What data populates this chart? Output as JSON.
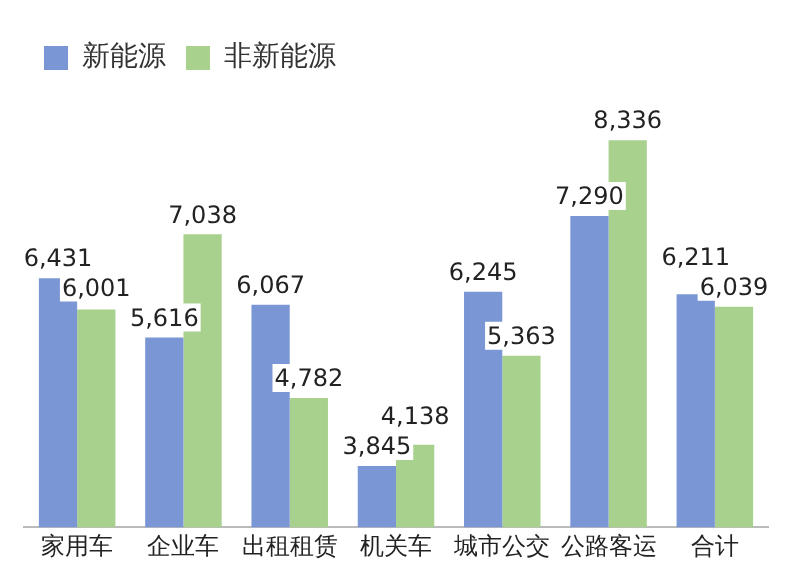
{
  "chart_data": {
    "type": "bar",
    "categories": [
      "家用车",
      "企业车",
      "出租租赁",
      "机关车",
      "城市公交",
      "公路客运",
      "合计"
    ],
    "series": [
      {
        "name": "新能源",
        "color": "#7b96d4",
        "values": [
          6431,
          5616,
          6067,
          3845,
          6245,
          7290,
          6211
        ],
        "value_labels": [
          "6,431",
          "5,616",
          "6,067",
          "3,845",
          "6,245",
          "7,290",
          "6,211"
        ]
      },
      {
        "name": "非新能源",
        "color": "#a9d18e",
        "values": [
          6001,
          7038,
          4782,
          4138,
          5363,
          8336,
          6039
        ],
        "value_labels": [
          "6,001",
          "7,038",
          "4,782",
          "4,138",
          "5,363",
          "8,336",
          "6,039"
        ]
      }
    ],
    "legend": "top left",
    "grid": false
  }
}
